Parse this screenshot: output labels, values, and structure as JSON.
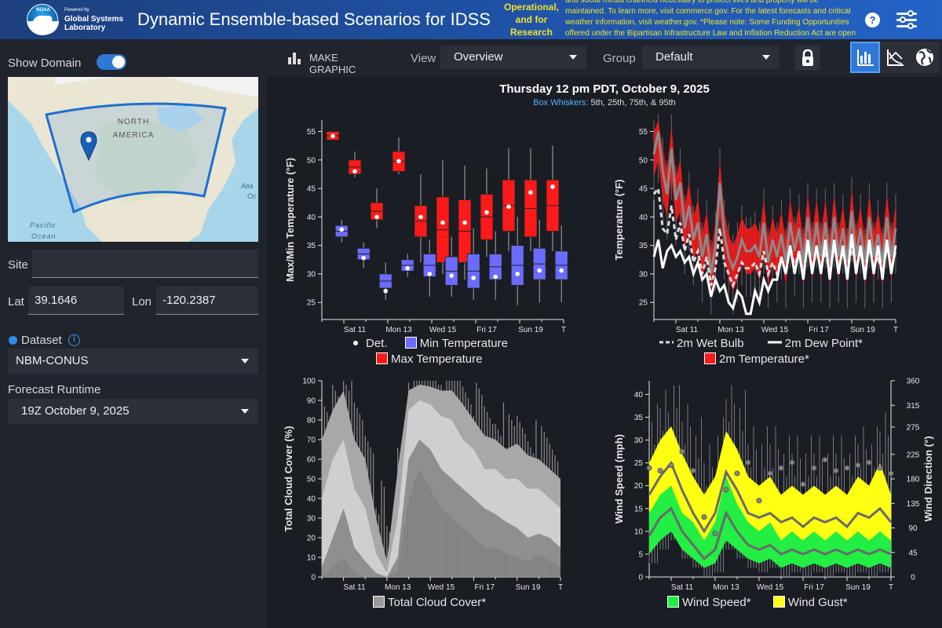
{
  "header": {
    "powered_by": "Powered by",
    "org_line1": "Global Systems",
    "org_line2": "Laboratory",
    "noaa": "NOAA",
    "title": "Dynamic Ensemble-based Scenarios for IDSS",
    "notice_tag": "Operational, and for Research",
    "notice_text": "and social media channels necessary to protect lives and property will be maintained. To learn more, visit commerce.gov. For the latest forecasts and critical weather information, visit weather.gov. *Please note: Some Funding Opportunities offered under the Bipartisan Infrastructure Law and Inflation Reduction Act are open and can",
    "help_label": "?"
  },
  "sidebar": {
    "show_domain_label": "Show Domain",
    "show_domain_on": true,
    "map_labels": {
      "continent1": "NORTH",
      "continent2": "AMERICA",
      "ocean1": "Pacific",
      "ocean2": "Ocean",
      "atl1": "Atla",
      "atl2": "Oc"
    },
    "site_label": "Site",
    "site_value": "",
    "lat_label": "Lat",
    "lat_value": "39.1646",
    "lon_label": "Lon",
    "lon_value": "-120.2387",
    "dataset_label": "Dataset",
    "dataset_value": "NBM-CONUS",
    "runtime_label": "Forecast Runtime",
    "runtime_value": "19Z October 9, 2025"
  },
  "toolbar": {
    "make_graphic": "MAKE GRAPHIC",
    "view_label": "View",
    "view_value": "Overview",
    "group_label": "Group",
    "group_value": "Default"
  },
  "main": {
    "date_title": "Thursday 12 pm PDT, October 9, 2025",
    "box_label": "Box Whiskers:",
    "box_text": "5th, 25th, 75th, & 95th"
  },
  "colors": {
    "accent": "#2f78d6",
    "max_temp": "#ff1a1a",
    "min_temp": "#6b6bff",
    "wind_speed": "#22ee44",
    "wind_gust": "#ffff11",
    "cloud": "#9a9a9a"
  },
  "chart_data": [
    {
      "type": "box",
      "ylabel": "Max/Min Temperature (°F)",
      "ylim": [
        22,
        57
      ],
      "yticks": [
        25,
        30,
        35,
        40,
        45,
        50,
        55
      ],
      "xticks": [
        "Sat 11",
        "Mon 13",
        "Wed 15",
        "Fri 17",
        "Sun 19",
        "T"
      ],
      "legend": [
        "Det.",
        "Min Temperature",
        "Max Temperature"
      ],
      "max_temperature": [
        {
          "day": 0.5,
          "p5": 53.5,
          "p25": 53.5,
          "p75": 55,
          "p95": 55,
          "det": 54.2
        },
        {
          "day": 1.5,
          "p5": 47,
          "p25": 47.5,
          "p75": 50,
          "p95": 51.5,
          "det": 48
        },
        {
          "day": 2.5,
          "p5": 38,
          "p25": 39.5,
          "p75": 42.5,
          "p95": 45,
          "det": 40
        },
        {
          "day": 3.5,
          "p5": 47.5,
          "p25": 48,
          "p75": 51.5,
          "p95": 54,
          "det": 49.8
        },
        {
          "day": 4.5,
          "p5": 32,
          "p25": 36.5,
          "p75": 42,
          "p95": 47.5,
          "det": 40
        },
        {
          "day": 5.5,
          "p5": 30,
          "p25": 32,
          "p75": 43.5,
          "p95": 50,
          "det": 39
        },
        {
          "day": 6.5,
          "p5": 29,
          "p25": 32,
          "p75": 43,
          "p95": 49,
          "det": 39
        },
        {
          "day": 7.5,
          "p5": 33,
          "p25": 36,
          "p75": 44,
          "p95": 48.5,
          "det": 40.8
        },
        {
          "day": 8.5,
          "p5": 34,
          "p25": 37.5,
          "p75": 46.5,
          "p95": 52,
          "det": 41.8
        },
        {
          "day": 9.5,
          "p5": 34,
          "p25": 36.5,
          "p75": 46.5,
          "p95": 52,
          "det": 44.3
        },
        {
          "day": 10.5,
          "p5": 34,
          "p25": 37.5,
          "p75": 46.5,
          "p95": 52.5,
          "det": 45.3
        }
      ],
      "min_temperature": [
        {
          "day": 0.9,
          "p5": 35.5,
          "p25": 36.5,
          "p75": 38.5,
          "p95": 39.5,
          "det": 37.8
        },
        {
          "day": 1.9,
          "p5": 31,
          "p25": 32.5,
          "p75": 34.5,
          "p95": 35.5,
          "det": 32.8
        },
        {
          "day": 2.9,
          "p5": 25.5,
          "p25": 27.5,
          "p75": 30,
          "p95": 32,
          "det": 27
        },
        {
          "day": 3.9,
          "p5": 29.5,
          "p25": 30.5,
          "p75": 32.5,
          "p95": 33.5,
          "det": 31
        },
        {
          "day": 4.9,
          "p5": 26,
          "p25": 29.5,
          "p75": 33.5,
          "p95": 36,
          "det": 30
        },
        {
          "day": 5.9,
          "p5": 26,
          "p25": 28,
          "p75": 33,
          "p95": 36.5,
          "det": 29.7
        },
        {
          "day": 6.9,
          "p5": 25.5,
          "p25": 27.5,
          "p75": 33.5,
          "p95": 38,
          "det": 29.3
        },
        {
          "day": 7.9,
          "p5": 25.5,
          "p25": 29,
          "p75": 33.5,
          "p95": 37.5,
          "det": 29.5
        },
        {
          "day": 8.9,
          "p5": 24.5,
          "p25": 28,
          "p75": 35,
          "p95": 40,
          "det": 30
        },
        {
          "day": 9.9,
          "p5": 25,
          "p25": 29,
          "p75": 34.5,
          "p95": 39.5,
          "det": 30.6
        },
        {
          "day": 10.9,
          "p5": 25,
          "p25": 29,
          "p75": 34,
          "p95": 38.5,
          "det": 30.6
        }
      ]
    },
    {
      "type": "line",
      "ylabel": "Temperature (°F)",
      "ylim": [
        22,
        57
      ],
      "yticks": [
        25,
        30,
        35,
        40,
        45,
        50,
        55
      ],
      "xticks": [
        "Sat 11",
        "Mon 13",
        "Wed 15",
        "Fri 17",
        "Sun 19",
        "T"
      ],
      "legend": [
        "2m Wet Bulb",
        "2m Dew Point*",
        "2m Temperature*"
      ],
      "x_days": [
        0,
        0.2,
        0.4,
        0.6,
        0.8,
        1,
        1.2,
        1.4,
        1.6,
        1.8,
        2,
        2.2,
        2.4,
        2.6,
        2.8,
        3,
        3.2,
        3.4,
        3.6,
        3.8,
        4,
        4.2,
        4.4,
        4.6,
        4.8,
        5,
        5.2,
        5.4,
        5.6,
        5.8,
        6,
        6.2,
        6.4,
        6.6,
        6.8,
        7,
        7.2,
        7.4,
        7.6,
        7.8,
        8,
        8.2,
        8.4,
        8.6,
        8.8,
        9,
        9.2,
        9.4,
        9.6,
        9.8,
        10,
        10.2,
        10.4,
        10.6,
        10.8,
        11
      ],
      "temperature_median": [
        51,
        55,
        48,
        44,
        52,
        43,
        46,
        38,
        42,
        36,
        39,
        33,
        37,
        30,
        35,
        46,
        37,
        33,
        31,
        33,
        36,
        34,
        34,
        35,
        33,
        39,
        32,
        36,
        33,
        37,
        32,
        39,
        34,
        38,
        32,
        40,
        33,
        39,
        33,
        39,
        32,
        40,
        33,
        38,
        32,
        41,
        33,
        38,
        32,
        40,
        33,
        37,
        32,
        40,
        33,
        38
      ],
      "wet_bulb_median": [
        44,
        45,
        38,
        37,
        42,
        36,
        39,
        34,
        37,
        32,
        34,
        30,
        33,
        28,
        31,
        38,
        32,
        30,
        28,
        30,
        32,
        31,
        31,
        32,
        30,
        34,
        30,
        32,
        30,
        33,
        30,
        35,
        31,
        34,
        30,
        35,
        31,
        34,
        31,
        34,
        30,
        35,
        31,
        34,
        30,
        35,
        31,
        34,
        30,
        35,
        31,
        33,
        30,
        35,
        31,
        34
      ],
      "dew_point_det": [
        33,
        36,
        31,
        34,
        35,
        33,
        34,
        32,
        33,
        30,
        32,
        29,
        30,
        26,
        29,
        27,
        28,
        25,
        24,
        27,
        26,
        23,
        23,
        27,
        25,
        29,
        27,
        29,
        29,
        33,
        30,
        35,
        30,
        34,
        29,
        36,
        30,
        35,
        30,
        36,
        29,
        36,
        30,
        35,
        29,
        37,
        30,
        35,
        29,
        36,
        30,
        35,
        29,
        36,
        30,
        35
      ],
      "temperature_p5": [
        47,
        50,
        43,
        40,
        47,
        39,
        41,
        34,
        38,
        32,
        35,
        29,
        33,
        27,
        31,
        41,
        33,
        29,
        27,
        29,
        32,
        30,
        30,
        31,
        29,
        34,
        28,
        32,
        29,
        33,
        28,
        35,
        30,
        34,
        28,
        35,
        29,
        35,
        29,
        35,
        28,
        35,
        29,
        34,
        28,
        36,
        29,
        34,
        28,
        35,
        29,
        33,
        28,
        35,
        29,
        34
      ],
      "temperature_p95": [
        55,
        57,
        52,
        48,
        56,
        47,
        50,
        42,
        46,
        40,
        43,
        37,
        41,
        34,
        39,
        50,
        41,
        37,
        35,
        37,
        40,
        38,
        38,
        39,
        37,
        43,
        36,
        40,
        37,
        41,
        36,
        43,
        38,
        42,
        36,
        44,
        37,
        43,
        37,
        43,
        36,
        44,
        37,
        42,
        36,
        45,
        37,
        42,
        36,
        44,
        37,
        41,
        36,
        44,
        37,
        42
      ]
    },
    {
      "type": "area",
      "ylabel": "Total Cloud Cover (%)",
      "ylim": [
        0,
        100
      ],
      "yticks": [
        0,
        10,
        20,
        30,
        40,
        50,
        60,
        70,
        80,
        90,
        100
      ],
      "xticks": [
        "Sat 11",
        "Mon 13",
        "Wed 15",
        "Fri 17",
        "Sun 19",
        "T"
      ],
      "legend": [
        "Total Cloud Cover*"
      ],
      "x_days": [
        0,
        0.5,
        1,
        1.5,
        2,
        2.5,
        3,
        3.5,
        4,
        4.5,
        5,
        5.5,
        6,
        6.5,
        7,
        7.5,
        8,
        8.5,
        9,
        9.5,
        10,
        10.5,
        11
      ],
      "p5": [
        0,
        5,
        10,
        2,
        0,
        0,
        0,
        3,
        40,
        55,
        45,
        35,
        30,
        25,
        20,
        15,
        15,
        12,
        10,
        8,
        12,
        8,
        5
      ],
      "p25": [
        5,
        20,
        35,
        15,
        8,
        2,
        0,
        10,
        60,
        70,
        65,
        55,
        50,
        45,
        40,
        35,
        32,
        28,
        25,
        20,
        22,
        20,
        15
      ],
      "p75": [
        40,
        60,
        70,
        45,
        35,
        12,
        2,
        30,
        85,
        90,
        88,
        82,
        80,
        70,
        65,
        55,
        55,
        50,
        50,
        45,
        45,
        40,
        35
      ],
      "p95": [
        70,
        85,
        95,
        70,
        60,
        30,
        8,
        55,
        95,
        98,
        97,
        95,
        95,
        88,
        80,
        72,
        70,
        65,
        68,
        62,
        60,
        55,
        50
      ]
    },
    {
      "type": "line",
      "ylabel": "Wind Speed (mph)",
      "y2label": "Wind Direction (°)",
      "ylim": [
        0,
        43
      ],
      "yticks": [
        0,
        5,
        10,
        15,
        20,
        25,
        30,
        35,
        40
      ],
      "y2ticks": [
        0,
        45,
        90,
        135,
        180,
        225,
        275,
        315,
        360
      ],
      "xticks": [
        "Sat 11",
        "Mon 13",
        "Wed 15",
        "Fri 17",
        "Sun 19",
        "T"
      ],
      "legend": [
        "Wind Speed*",
        "Wind Gust*"
      ],
      "x_days": [
        0,
        0.5,
        1,
        1.5,
        2,
        2.5,
        3,
        3.5,
        4,
        4.5,
        5,
        5.5,
        6,
        6.5,
        7,
        7.5,
        8,
        8.5,
        9,
        9.5,
        10,
        10.5,
        11
      ],
      "speed_p5": [
        5,
        8,
        10,
        6,
        4,
        2,
        3,
        8,
        6,
        4,
        3,
        4,
        2,
        3,
        2,
        3,
        2,
        3,
        2,
        3,
        2,
        3,
        2
      ],
      "speed_p95": [
        14,
        18,
        20,
        14,
        12,
        8,
        12,
        22,
        16,
        12,
        10,
        12,
        8,
        10,
        8,
        10,
        8,
        10,
        8,
        10,
        8,
        10,
        8
      ],
      "speed_median": [
        9,
        13,
        15,
        10,
        7,
        4,
        6,
        14,
        10,
        7,
        6,
        7,
        5,
        6,
        5,
        6,
        5,
        6,
        5,
        6,
        5,
        6,
        5
      ],
      "gust_p5": [
        12,
        15,
        18,
        12,
        9,
        5,
        8,
        15,
        12,
        9,
        8,
        9,
        7,
        8,
        7,
        8,
        7,
        8,
        7,
        8,
        7,
        8,
        7
      ],
      "gust_p95": [
        25,
        30,
        33,
        27,
        22,
        18,
        22,
        32,
        28,
        22,
        20,
        22,
        18,
        20,
        18,
        20,
        18,
        20,
        18,
        22,
        20,
        25,
        18
      ],
      "gust_median": [
        18,
        22,
        25,
        19,
        14,
        10,
        14,
        23,
        19,
        14,
        13,
        14,
        12,
        13,
        11,
        13,
        12,
        13,
        11,
        14,
        13,
        15,
        12
      ],
      "direction_deg": [
        200,
        195,
        205,
        230,
        195,
        110,
        80,
        160,
        190,
        210,
        140,
        190,
        200,
        210,
        170,
        200,
        215,
        195,
        200,
        205,
        210,
        200,
        190
      ]
    }
  ]
}
